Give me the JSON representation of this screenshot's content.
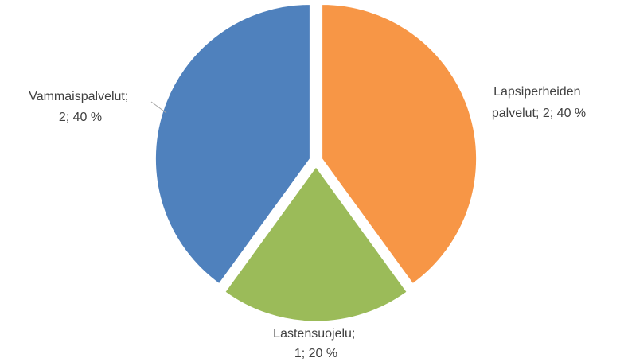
{
  "chart_data": {
    "type": "pie",
    "title": "",
    "categories": [
      "Lapsiperheiden palvelut",
      "Lastensuojelu",
      "Vammaispalvelut"
    ],
    "values": [
      2,
      1,
      2
    ],
    "percents": [
      "40 %",
      "20 %",
      "40 %"
    ],
    "colors": [
      "#F79646",
      "#9BBB59",
      "#4F81BD"
    ],
    "legend": "none",
    "data_labels": [
      [
        "Lapsiperheiden",
        "palvelut; 2; 40 %"
      ],
      [
        "Lastensuojelu;",
        "1; 20 %"
      ],
      [
        "Vammaispalvelut;",
        "2; 40 %"
      ]
    ]
  }
}
